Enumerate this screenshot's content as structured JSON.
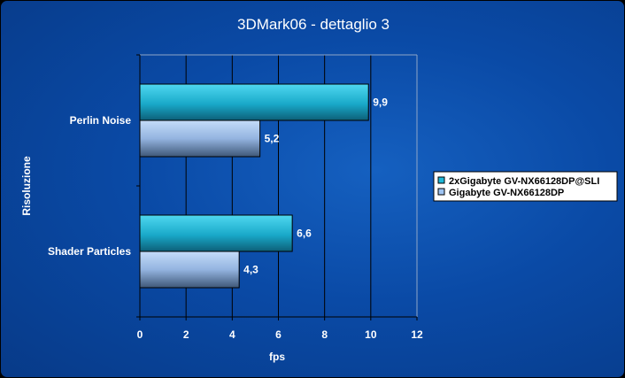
{
  "chart_data": {
    "type": "bar",
    "orientation": "horizontal",
    "title": "3DMark06 - dettaglio 3",
    "xlabel": "fps",
    "ylabel": "Risoluzione",
    "categories": [
      "Perlin Noise",
      "Shader Particles"
    ],
    "series": [
      {
        "name": "2xGigabyte GV-NX66128DP@SLI",
        "values": [
          9.9,
          6.6
        ],
        "labels": [
          "9,9",
          "6,6"
        ],
        "color": "#1fb8d8"
      },
      {
        "name": "Gigabyte GV-NX66128DP",
        "values": [
          5.2,
          4.3
        ],
        "labels": [
          "5,2",
          "4,3"
        ],
        "color": "#9ec4f2"
      }
    ],
    "xlim": [
      0,
      12
    ],
    "xticks": [
      0,
      2,
      4,
      6,
      8,
      10,
      12
    ],
    "grid": "vertical",
    "legend_position": "right"
  }
}
